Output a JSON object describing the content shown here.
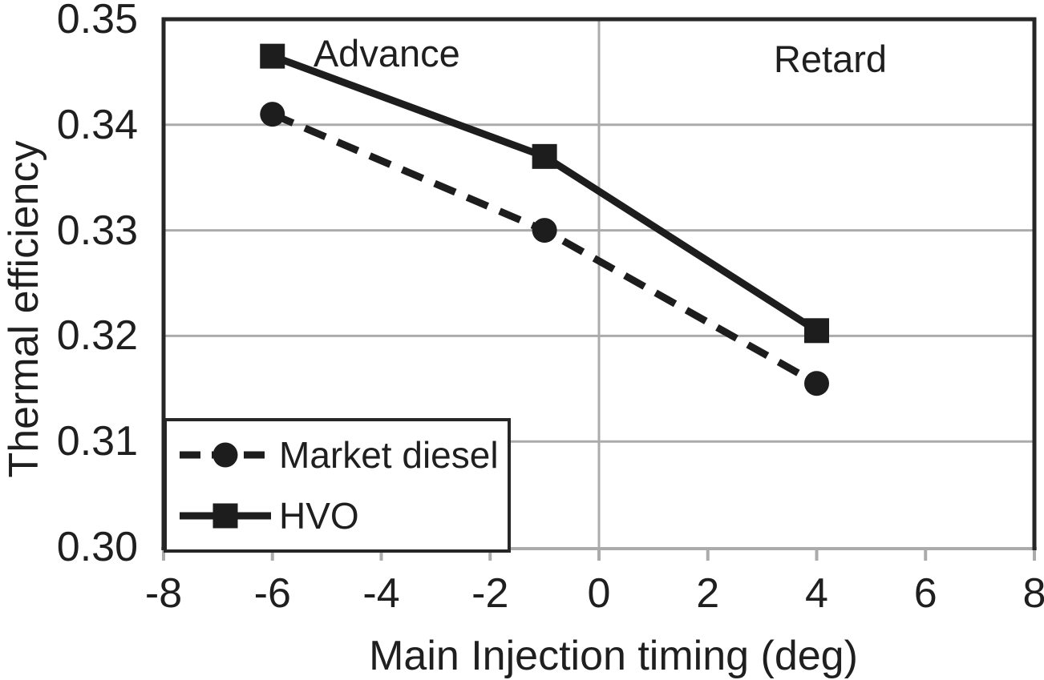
{
  "chart_data": {
    "type": "line",
    "title": "",
    "xlabel": "Main Injection timing (deg)",
    "ylabel": "Thermal efficiency",
    "xlim": [
      -8,
      8
    ],
    "ylim": [
      0.3,
      0.35
    ],
    "x_ticks": [
      -8,
      -6,
      -4,
      -2,
      0,
      2,
      4,
      6,
      8
    ],
    "y_ticks": [
      0.3,
      0.31,
      0.32,
      0.33,
      0.34,
      0.35
    ],
    "y_tick_decimals": 2,
    "grid": {
      "horizontal": true,
      "vertical": "only at x=0",
      "color": "#ababab"
    },
    "x": [
      -6,
      -1,
      4
    ],
    "series": [
      {
        "name": "Market diesel",
        "marker": "circle",
        "line": "dashed",
        "color": "#1d1d1d",
        "values": [
          0.341,
          0.33,
          0.3155
        ]
      },
      {
        "name": "HVO",
        "marker": "square",
        "line": "solid",
        "color": "#1d1d1d",
        "values": [
          0.3465,
          0.337,
          0.3205
        ]
      }
    ],
    "annotations": [
      {
        "text": "Advance",
        "x": -3.9,
        "y": 0.3467
      },
      {
        "text": "Retard",
        "x": 4.25,
        "y": 0.3462
      }
    ],
    "legend_position": "bottom-left"
  },
  "colors": {
    "series": "#1d1d1d",
    "grid": "#ababab",
    "axis_border": "#262626",
    "text": "#1f1f1f"
  }
}
